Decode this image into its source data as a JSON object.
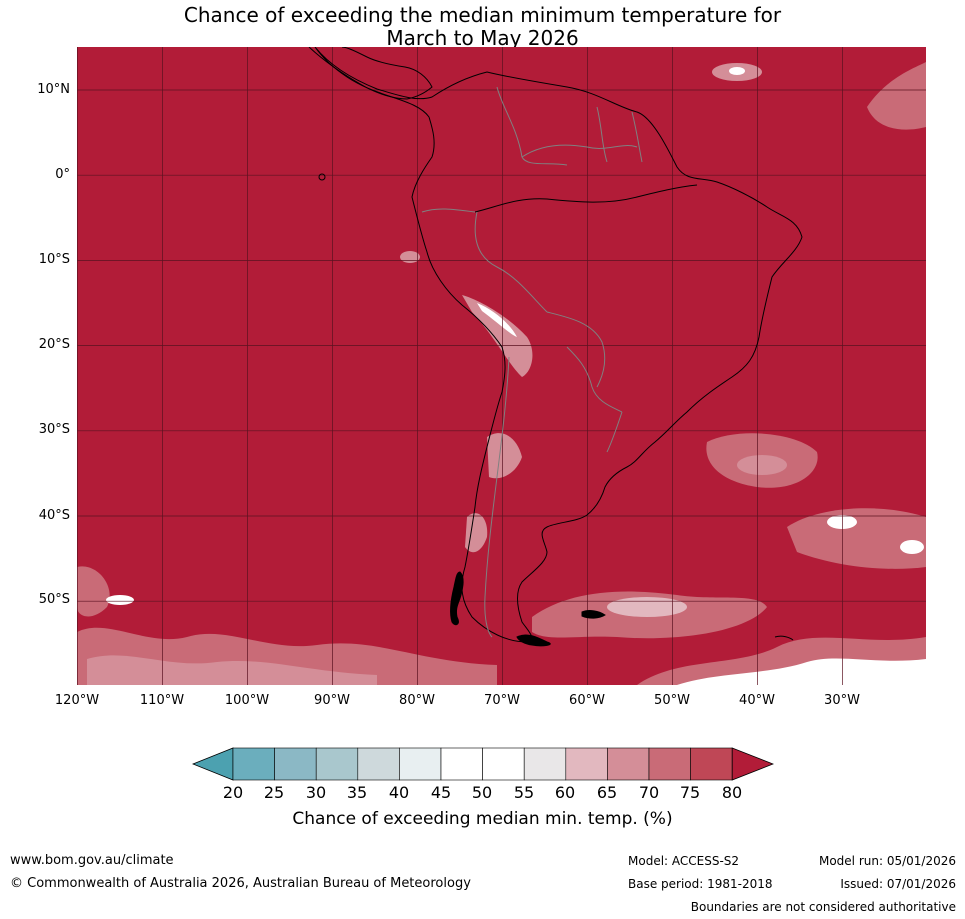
{
  "title": {
    "line1": "Chance of exceeding the median minimum temperature for",
    "line2": "March to May 2026"
  },
  "map": {
    "region": "South America",
    "background_color": "#B21C38",
    "gridline_color": "#5a1220",
    "coast_color": "#000000",
    "border_color": "#808080",
    "lat_labels": [
      "10°N",
      "0°",
      "10°S",
      "20°S",
      "30°S",
      "40°S",
      "50°S"
    ],
    "lon_labels": [
      "120°W",
      "110°W",
      "100°W",
      "90°W",
      "80°W",
      "70°W",
      "60°W",
      "50°W",
      "40°W",
      "30°W"
    ]
  },
  "colorbar": {
    "ticks": [
      "20",
      "25",
      "30",
      "35",
      "40",
      "45",
      "50",
      "55",
      "60",
      "65",
      "70",
      "75",
      "80"
    ],
    "colors": [
      "#4CA1B0",
      "#6BAEBD",
      "#8BB8C5",
      "#A9C7CD",
      "#CED9DC",
      "#E8EFF1",
      "#FFFFFF",
      "#FFFFFF",
      "#E9E7E8",
      "#E2B8BF",
      "#D48E98",
      "#C96B77",
      "#BF4756",
      "#B21C38"
    ],
    "label": "Chance of exceeding median min. temp. (%)"
  },
  "footer": {
    "website": "www.bom.gov.au/climate",
    "copyright": "© Commonwealth of Australia 2026, Australian Bureau of Meteorology",
    "model": "Model: ACCESS-S2",
    "base_period": "Base period: 1981-2018",
    "model_run": "Model run: 05/01/2026",
    "issued": "Issued: 07/01/2026",
    "disclaimer": "Boundaries are not considered authoritative"
  }
}
